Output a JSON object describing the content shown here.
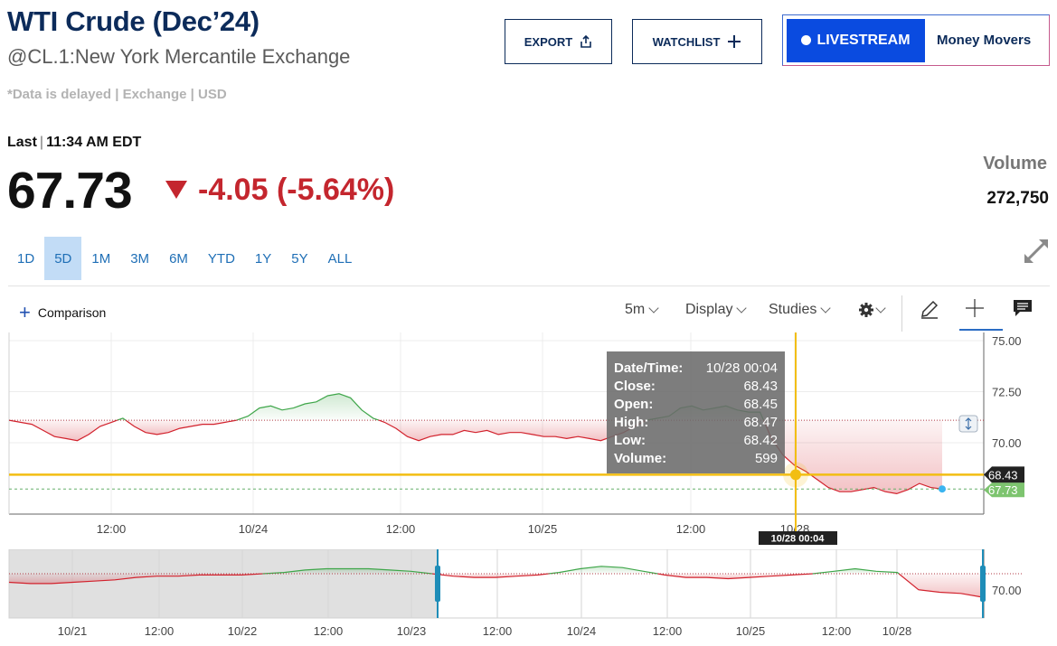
{
  "header": {
    "title": "WTI Crude (Dec’24)",
    "subtitle": "@CL.1:New York Mercantile Exchange",
    "delayed_note": "*Data is delayed | Exchange | USD",
    "last_label": "Last",
    "last_time": "11:34 AM EDT",
    "price": "67.73",
    "change": "-4.05 (-5.64%)",
    "volume_label": "Volume",
    "volume_value": "272,750"
  },
  "buttons": {
    "export": "EXPORT",
    "watchlist": "WATCHLIST",
    "livestream": "LIVESTREAM",
    "money_movers": "Money Movers"
  },
  "ranges": [
    "1D",
    "5D",
    "1M",
    "3M",
    "6M",
    "YTD",
    "1Y",
    "5Y",
    "ALL"
  ],
  "active_range": "5D",
  "toolbar": {
    "comparison": "Comparison",
    "interval": "5m",
    "display": "Display",
    "studies": "Studies"
  },
  "colors": {
    "up": "#3fa64a",
    "down": "#d2222d",
    "crosshair": "#f2be12",
    "title": "#0c2b5a",
    "link": "#1f6fb6"
  },
  "chart_data": [
    {
      "type": "area",
      "name": "main",
      "ylim": [
        66.5,
        75.4
      ],
      "y_ticks": [
        "75.00",
        "72.50",
        "70.00"
      ],
      "x_ticks": [
        "12:00",
        "10/24",
        "12:00",
        "10/25",
        "12:00",
        "10/28"
      ],
      "baseline": 71.1,
      "last_value": "67.73",
      "crosshair": {
        "value": "68.43",
        "time_label": "10/28 00:04"
      },
      "tooltip": [
        {
          "label": "Date/Time:",
          "value": "10/28 00:04"
        },
        {
          "label": "Close:",
          "value": "68.43"
        },
        {
          "label": "Open:",
          "value": "68.45"
        },
        {
          "label": "High:",
          "value": "68.47"
        },
        {
          "label": "Low:",
          "value": "68.42"
        },
        {
          "label": "Volume:",
          "value": "599"
        }
      ],
      "series": [
        {
          "values": [
            71.1,
            71.0,
            70.9,
            70.6,
            70.3,
            70.2,
            70.1,
            70.4,
            70.8,
            71.0,
            71.2,
            70.8,
            70.5,
            70.4,
            70.5,
            70.7,
            70.8,
            70.9,
            70.9,
            71.0,
            71.1,
            71.3,
            71.7,
            71.8,
            71.6,
            71.7,
            71.9,
            72.0,
            72.3,
            72.4,
            72.2,
            71.6,
            71.2,
            71.0,
            70.7,
            70.3,
            70.1,
            70.3,
            70.4,
            70.4,
            70.6,
            70.5,
            70.6,
            70.4,
            70.5,
            70.5,
            70.4,
            70.3,
            70.3,
            70.2,
            70.3,
            70.2,
            70.1,
            70.3,
            70.5,
            70.8,
            71.1,
            71.2,
            71.3,
            71.7,
            71.8,
            71.6,
            71.7,
            71.8,
            71.6,
            71.5,
            71.5,
            70.2,
            69.4,
            68.9,
            68.6,
            68.2,
            67.8,
            67.6,
            67.6,
            67.7,
            67.8,
            67.6,
            67.5,
            67.7,
            68.0,
            67.8,
            67.73
          ]
        }
      ]
    },
    {
      "type": "area",
      "name": "navigator",
      "y_ticks": [
        "70.00"
      ],
      "x_ticks": [
        "10/21",
        "12:00",
        "10/22",
        "12:00",
        "10/23",
        "12:00",
        "10/24",
        "12:00",
        "10/25",
        "12:00",
        "10/28"
      ],
      "baseline": 71.1,
      "series": [
        {
          "values": [
            70.4,
            70.3,
            70.3,
            70.4,
            70.5,
            70.6,
            70.8,
            70.9,
            70.9,
            71.0,
            71.0,
            71.0,
            71.1,
            71.2,
            71.4,
            71.5,
            71.5,
            71.5,
            71.4,
            71.3,
            71.1,
            70.9,
            70.8,
            70.8,
            70.9,
            71.0,
            71.2,
            71.5,
            71.7,
            71.6,
            71.3,
            71.0,
            70.8,
            70.8,
            70.7,
            70.8,
            70.9,
            71.0,
            71.1,
            71.3,
            71.5,
            71.3,
            71.2,
            69.8,
            69.6,
            69.5,
            69.2
          ]
        }
      ]
    }
  ]
}
